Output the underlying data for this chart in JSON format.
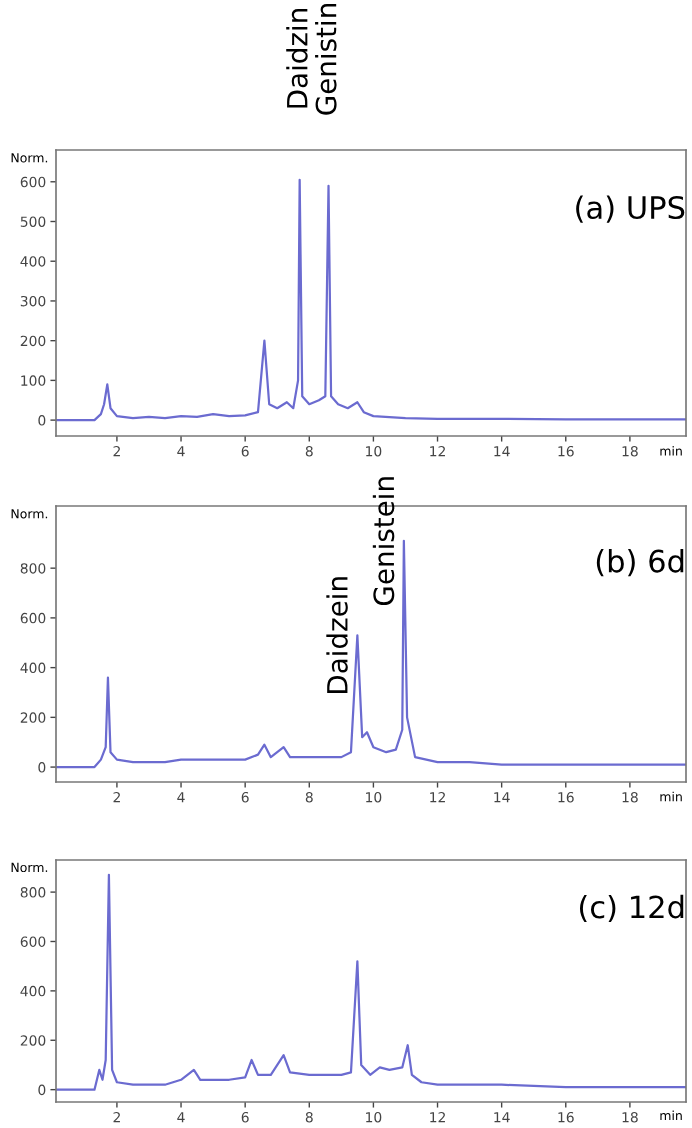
{
  "chart_data": [
    {
      "type": "line",
      "title": "(a) UPS",
      "ylabel": "Norm.",
      "xlabel": "min",
      "xlim": [
        0.1,
        19.75
      ],
      "xticks": [
        2,
        4,
        6,
        8,
        10,
        12,
        14,
        16,
        18
      ],
      "ylim": [
        -40,
        680
      ],
      "yticks": [
        0,
        100,
        200,
        300,
        400,
        500,
        600
      ],
      "grid": false,
      "annotations": [
        {
          "text": "Daidzin",
          "x": 7.7,
          "y": 605
        },
        {
          "text": "Genistin",
          "x": 8.6,
          "y": 590
        }
      ],
      "series": [
        {
          "color": "#6b6bd0",
          "x": [
            0.1,
            1.3,
            1.5,
            1.6,
            1.7,
            1.8,
            2.0,
            2.5,
            3.0,
            3.5,
            4.0,
            4.5,
            5.0,
            5.5,
            6.0,
            6.4,
            6.6,
            6.75,
            7.0,
            7.3,
            7.5,
            7.65,
            7.7,
            7.78,
            8.0,
            8.3,
            8.5,
            8.6,
            8.68,
            8.9,
            9.2,
            9.5,
            9.7,
            10,
            11,
            12,
            13,
            14,
            16,
            18,
            19.75
          ],
          "values": [
            0,
            0,
            15,
            40,
            90,
            30,
            10,
            5,
            8,
            5,
            10,
            8,
            15,
            10,
            12,
            20,
            200,
            40,
            30,
            45,
            30,
            100,
            605,
            60,
            40,
            50,
            60,
            590,
            60,
            40,
            30,
            45,
            20,
            10,
            5,
            3,
            3,
            3,
            2,
            2,
            2
          ]
        }
      ]
    },
    {
      "type": "line",
      "title": "(b) 6d",
      "ylabel": "Norm.",
      "xlabel": "min",
      "xlim": [
        0.1,
        19.75
      ],
      "xticks": [
        2,
        4,
        6,
        8,
        10,
        12,
        14,
        16,
        18
      ],
      "ylim": [
        -60,
        1050
      ],
      "yticks": [
        0,
        200,
        400,
        600,
        800
      ],
      "grid": false,
      "annotations": [
        {
          "text": "Daidzein",
          "x": 9.5,
          "y": 530
        },
        {
          "text": "Genistein",
          "x": 10.95,
          "y": 910
        }
      ],
      "series": [
        {
          "color": "#6b6bd0",
          "x": [
            0.1,
            1.3,
            1.5,
            1.65,
            1.72,
            1.8,
            2.0,
            2.5,
            3,
            3.5,
            4,
            4.5,
            5,
            5.5,
            6,
            6.4,
            6.6,
            6.8,
            7.2,
            7.4,
            8,
            8.5,
            9,
            9.3,
            9.5,
            9.65,
            9.8,
            10,
            10.4,
            10.7,
            10.9,
            10.95,
            11.05,
            11.3,
            12,
            13,
            14,
            16,
            18,
            19.75
          ],
          "values": [
            0,
            0,
            30,
            80,
            360,
            60,
            30,
            20,
            20,
            20,
            30,
            30,
            30,
            30,
            30,
            50,
            90,
            40,
            80,
            40,
            40,
            40,
            40,
            60,
            530,
            120,
            140,
            80,
            60,
            70,
            150,
            910,
            200,
            40,
            20,
            20,
            10,
            10,
            10,
            10
          ]
        }
      ]
    },
    {
      "type": "line",
      "title": "(c) 12d",
      "ylabel": "Norm.",
      "xlabel": "min",
      "xlim": [
        0.1,
        19.75
      ],
      "xticks": [
        2,
        4,
        6,
        8,
        10,
        12,
        14,
        16,
        18
      ],
      "ylim": [
        -50,
        930
      ],
      "yticks": [
        0,
        200,
        400,
        600,
        800
      ],
      "grid": false,
      "series": [
        {
          "color": "#6b6bd0",
          "x": [
            0.1,
            1.3,
            1.45,
            1.55,
            1.65,
            1.75,
            1.85,
            2.0,
            2.5,
            3,
            3.5,
            4,
            4.4,
            4.6,
            5,
            5.5,
            6,
            6.2,
            6.4,
            6.8,
            7.2,
            7.4,
            8,
            8.5,
            9,
            9.3,
            9.5,
            9.62,
            9.9,
            10.2,
            10.5,
            10.9,
            11.07,
            11.2,
            11.5,
            12,
            13,
            14,
            16,
            18,
            19.75
          ],
          "values": [
            0,
            0,
            80,
            40,
            120,
            870,
            80,
            30,
            20,
            20,
            20,
            40,
            80,
            40,
            40,
            40,
            50,
            120,
            60,
            60,
            140,
            70,
            60,
            60,
            60,
            70,
            520,
            100,
            60,
            90,
            80,
            90,
            180,
            60,
            30,
            20,
            20,
            20,
            10,
            10,
            10
          ]
        }
      ]
    }
  ]
}
